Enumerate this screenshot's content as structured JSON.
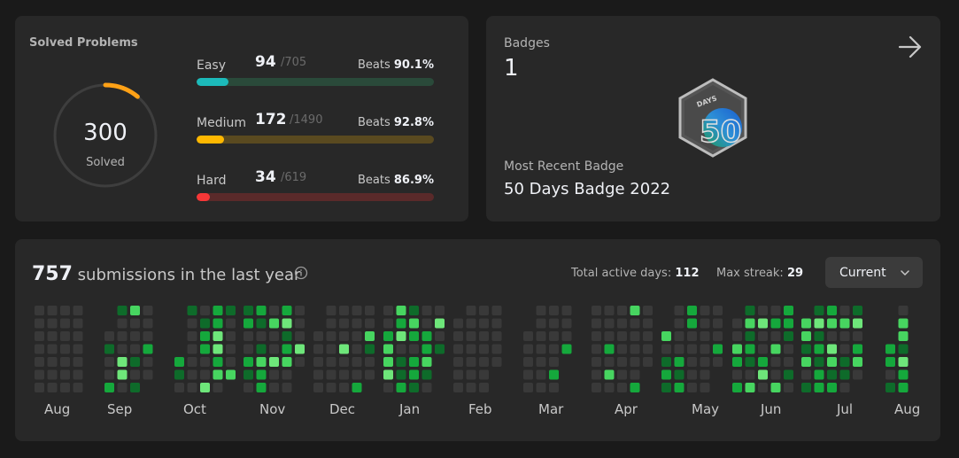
{
  "solved": {
    "title": "Solved Problems",
    "count": "300",
    "label": "Solved",
    "ring_fraction": 0.11,
    "ring_color": "#ffa116",
    "difficulties": [
      {
        "name": "Easy",
        "count": "94",
        "total": "/705",
        "beats_label": "Beats",
        "beats": "90.1%",
        "fraction": 0.133,
        "color": "#1cbaba",
        "track": "#2a4a3a"
      },
      {
        "name": "Medium",
        "count": "172",
        "total": "/1490",
        "beats_label": "Beats",
        "beats": "92.8%",
        "fraction": 0.115,
        "color": "#ffb800",
        "track": "#5a4a20"
      },
      {
        "name": "Hard",
        "count": "34",
        "total": "/619",
        "beats_label": "Beats",
        "beats": "86.9%",
        "fraction": 0.055,
        "color": "#f63737",
        "track": "#5a2a2a"
      }
    ]
  },
  "badges": {
    "title": "Badges",
    "count": "1",
    "arrow_icon": "arrow-right-icon",
    "badge_text": "DAYS",
    "badge_number": "50",
    "recent_label": "Most Recent Badge",
    "recent_name": "50 Days Badge 2022"
  },
  "calendar": {
    "count": "757",
    "suffix": "submissions in the last year",
    "info_icon": "info-icon",
    "active_label": "Total active days:",
    "active_value": "112",
    "streak_label": "Max streak:",
    "streak_value": "29",
    "selector": "Current",
    "months": [
      "Aug",
      "Sep",
      "Oct",
      "Nov",
      "Dec",
      "Jan",
      "Feb",
      "Mar",
      "Apr",
      "May",
      "Jun",
      "Jul",
      "Aug"
    ],
    "colors": {
      "empty": "#393939",
      "l1": "#0e6b2a",
      "l2": "#15a83c",
      "l3": "#47d560",
      "l4": "#6ee67a"
    }
  }
}
